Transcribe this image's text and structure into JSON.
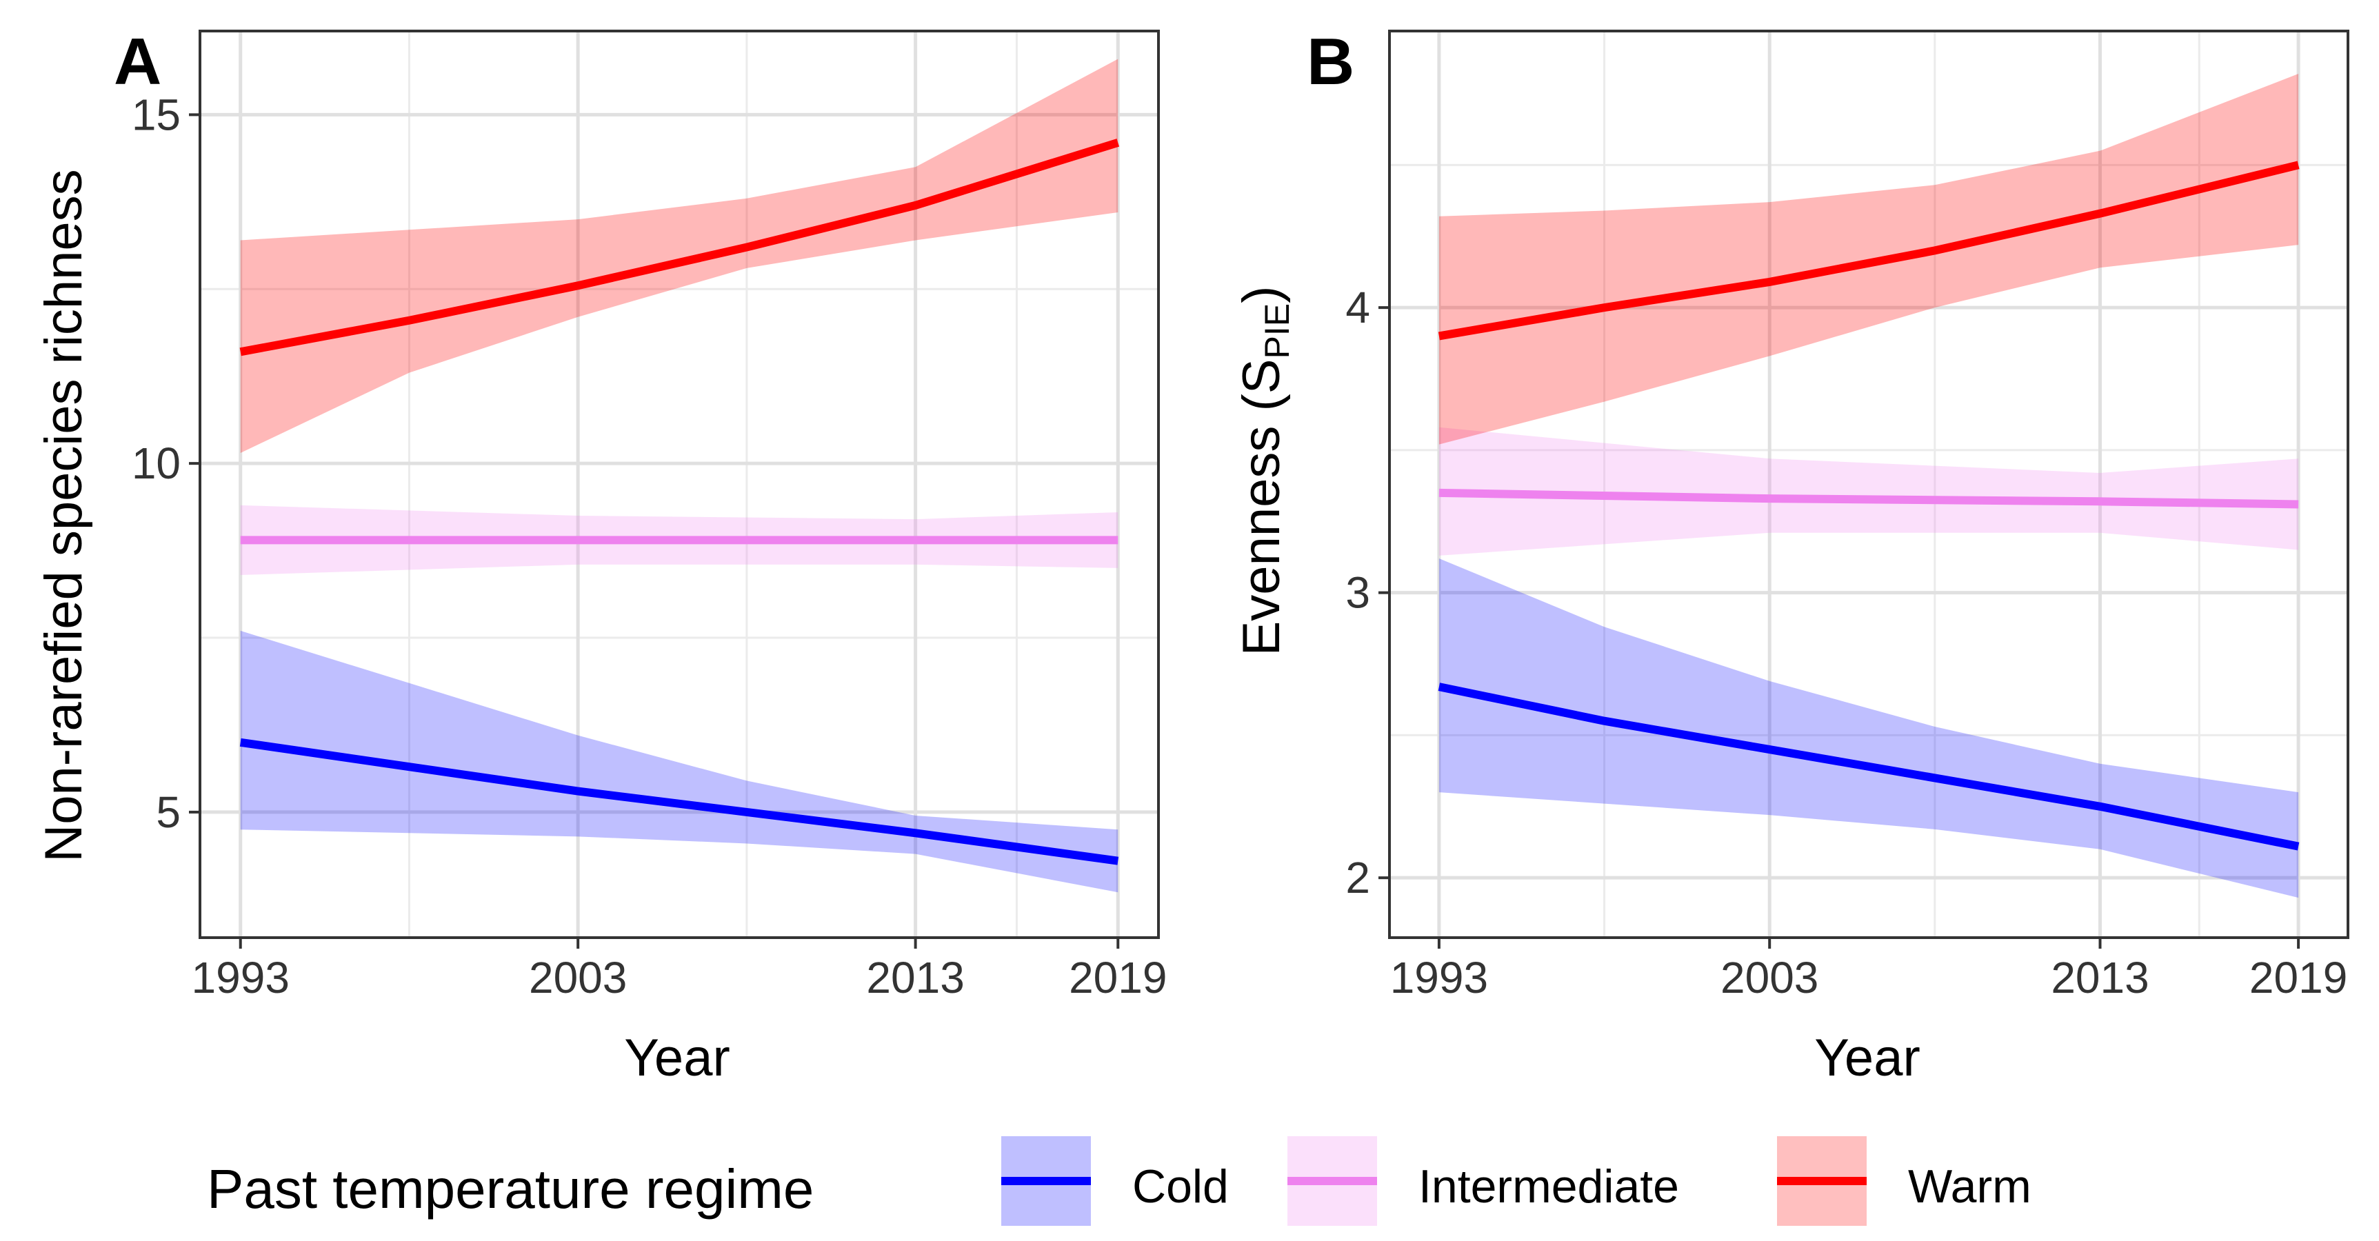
{
  "legend": {
    "title": "Past temperature regime",
    "position": "bottom",
    "items": [
      {
        "label": "Cold",
        "color": "#0000ff"
      },
      {
        "label": "Intermediate",
        "color": "#ee82ee"
      },
      {
        "label": "Warm",
        "color": "#ff0000"
      }
    ]
  },
  "chart_data": [
    {
      "panel": "A",
      "type": "line",
      "xlabel": "Year",
      "ylabel": "Non-rarefied species richness",
      "xlim": [
        1991.8,
        2020.2
      ],
      "ylim": [
        3.2,
        16.2
      ],
      "xticks": [
        1993,
        2003,
        2013,
        2019
      ],
      "yticks": [
        5,
        10,
        15
      ],
      "grid": true,
      "series": [
        {
          "name": "Cold",
          "color": "#0000ff",
          "ribbon_color": "#0000ff",
          "ribbon_opacity": 0.25,
          "x": [
            1993,
            1998,
            2003,
            2008,
            2013,
            2019
          ],
          "y": [
            6.0,
            5.65,
            5.3,
            5.0,
            4.7,
            4.3
          ],
          "lower": [
            4.75,
            4.7,
            4.65,
            4.55,
            4.4,
            3.85
          ],
          "upper": [
            7.6,
            6.85,
            6.1,
            5.45,
            4.95,
            4.75
          ]
        },
        {
          "name": "Intermediate",
          "color": "#ee82ee",
          "ribbon_color": "#ee82ee",
          "ribbon_opacity": 0.25,
          "x": [
            1993,
            2003,
            2013,
            2019
          ],
          "y": [
            8.9,
            8.9,
            8.9,
            8.9
          ],
          "lower": [
            8.4,
            8.55,
            8.55,
            8.5
          ],
          "upper": [
            9.4,
            9.25,
            9.2,
            9.3
          ]
        },
        {
          "name": "Warm",
          "color": "#ff0000",
          "ribbon_color": "#ff0000",
          "ribbon_opacity": 0.28,
          "x": [
            1993,
            1998,
            2003,
            2008,
            2013,
            2019
          ],
          "y": [
            11.6,
            12.05,
            12.55,
            13.1,
            13.7,
            14.6
          ],
          "lower": [
            10.15,
            11.3,
            12.1,
            12.8,
            13.2,
            13.6
          ],
          "upper": [
            13.2,
            13.35,
            13.5,
            13.8,
            14.25,
            15.8
          ]
        }
      ]
    },
    {
      "panel": "B",
      "type": "line",
      "xlabel": "Year",
      "ylabel": "Evenness (S",
      "ylabel_sub": "PIE",
      "ylabel_close": ")",
      "xlim": [
        1991.5,
        2020.5
      ],
      "ylim": [
        1.79,
        4.97
      ],
      "xticks": [
        1993,
        2003,
        2013,
        2019
      ],
      "yticks": [
        2,
        3,
        4
      ],
      "grid": true,
      "series": [
        {
          "name": "Cold",
          "color": "#0000ff",
          "ribbon_color": "#0000ff",
          "ribbon_opacity": 0.25,
          "x": [
            1993,
            1998,
            2003,
            2008,
            2013,
            2019
          ],
          "y": [
            2.67,
            2.55,
            2.45,
            2.35,
            2.25,
            2.11
          ],
          "lower": [
            2.3,
            2.26,
            2.22,
            2.17,
            2.1,
            1.93
          ],
          "upper": [
            3.12,
            2.88,
            2.69,
            2.53,
            2.4,
            2.3
          ]
        },
        {
          "name": "Intermediate",
          "color": "#ee82ee",
          "ribbon_color": "#ee82ee",
          "ribbon_opacity": 0.25,
          "x": [
            1993,
            2003,
            2013,
            2019
          ],
          "y": [
            3.35,
            3.33,
            3.32,
            3.31
          ],
          "lower": [
            3.13,
            3.21,
            3.21,
            3.15
          ],
          "upper": [
            3.58,
            3.47,
            3.42,
            3.47
          ]
        },
        {
          "name": "Warm",
          "color": "#ff0000",
          "ribbon_color": "#ff0000",
          "ribbon_opacity": 0.28,
          "x": [
            1993,
            1998,
            2003,
            2008,
            2013,
            2019
          ],
          "y": [
            3.9,
            4.0,
            4.09,
            4.2,
            4.33,
            4.5
          ],
          "lower": [
            3.52,
            3.67,
            3.83,
            4.0,
            4.14,
            4.22
          ],
          "upper": [
            4.32,
            4.34,
            4.37,
            4.43,
            4.55,
            4.82
          ]
        }
      ]
    }
  ]
}
